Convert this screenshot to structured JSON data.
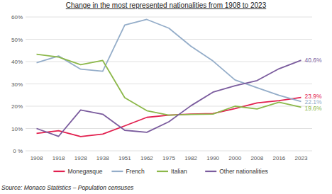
{
  "chart_data": {
    "type": "line",
    "title": "Change in the most represented nationalities from 1908 to 2023",
    "source": "Source: Monaco Statistics – Population censuses",
    "categories": [
      "1908",
      "1918",
      "1928",
      "1938",
      "1951",
      "1962",
      "1975",
      "1982",
      "1990",
      "2000",
      "2008",
      "2016",
      "2023"
    ],
    "ylim": [
      0,
      60
    ],
    "yticks": [
      {
        "value": 0,
        "label": "0 %"
      },
      {
        "value": 10,
        "label": "10%"
      },
      {
        "value": 20,
        "label": "20%"
      },
      {
        "value": 30,
        "label": "30%"
      },
      {
        "value": 40,
        "label": "40%"
      },
      {
        "value": 50,
        "label": "50%"
      },
      {
        "value": 60,
        "label": "60%"
      }
    ],
    "grid": true,
    "legend": "bottom",
    "series": [
      {
        "name": "Monegasque",
        "color": "#e2204f",
        "line_style": "solid",
        "values": [
          7.8,
          9,
          6.4,
          7.5,
          11.2,
          15,
          16,
          16.5,
          16.7,
          18.9,
          21.5,
          22.5,
          23.9
        ],
        "value_labels": [
          null,
          null,
          null,
          null,
          null,
          null,
          null,
          null,
          null,
          null,
          null,
          null,
          "23.9%"
        ]
      },
      {
        "name": "French",
        "color": "#94adc9",
        "line_style": "solid",
        "values": [
          39.5,
          42.5,
          36.6,
          35.7,
          56.4,
          58.9,
          55,
          46.9,
          40.3,
          31.8,
          28.3,
          24.9,
          22.1
        ],
        "value_labels": [
          null,
          null,
          null,
          null,
          null,
          null,
          null,
          null,
          null,
          null,
          null,
          null,
          "22.1%"
        ]
      },
      {
        "name": "Italian",
        "color": "#8cb84a",
        "line_style": "solid",
        "values": [
          43.3,
          42,
          38.6,
          40.5,
          23.8,
          18,
          16,
          16.3,
          16.5,
          20,
          18.8,
          21.8,
          19.6
        ],
        "value_labels": [
          null,
          null,
          null,
          null,
          null,
          null,
          null,
          null,
          null,
          null,
          null,
          null,
          "19.6%"
        ]
      },
      {
        "name": "Other nationalities",
        "color": "#7b5c9e",
        "line_style": "solid",
        "values": [
          10,
          6.5,
          18.3,
          16.4,
          9.2,
          8.3,
          13,
          20.2,
          26.3,
          29.2,
          31.5,
          36.8,
          40.6
        ],
        "value_labels": [
          null,
          null,
          null,
          null,
          null,
          null,
          null,
          null,
          null,
          null,
          null,
          null,
          "40.6%"
        ]
      }
    ]
  }
}
